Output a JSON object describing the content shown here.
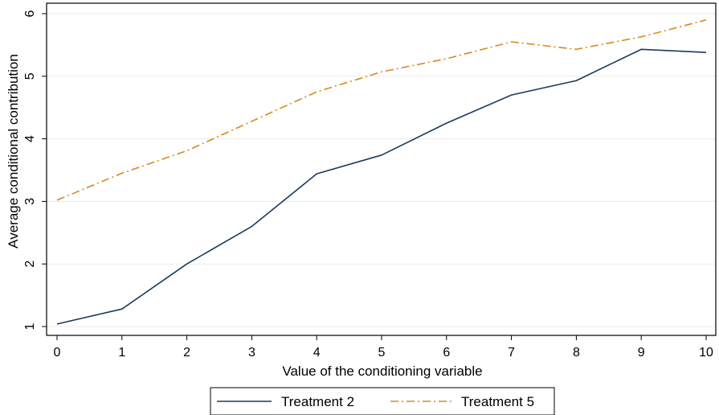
{
  "chart_data": {
    "type": "line",
    "title": "",
    "xlabel": "Value of the conditioning variable",
    "ylabel": "Average conditional contribution",
    "x": [
      0,
      1,
      2,
      3,
      4,
      5,
      6,
      7,
      8,
      9,
      10
    ],
    "xlim": [
      0,
      10
    ],
    "ylim": [
      1,
      6
    ],
    "xticks": [
      "0",
      "1",
      "2",
      "3",
      "4",
      "5",
      "6",
      "7",
      "8",
      "9",
      "10"
    ],
    "yticks": [
      "1",
      "2",
      "3",
      "4",
      "5",
      "6"
    ],
    "grid": true,
    "legend_position": "bottom",
    "series": [
      {
        "name": "Treatment 2",
        "color": "#1a3a5c",
        "dash": "solid",
        "values": [
          1.04,
          1.28,
          2.0,
          2.6,
          3.44,
          3.74,
          4.25,
          4.7,
          4.93,
          5.43,
          5.38
        ]
      },
      {
        "name": "Treatment 5",
        "color": "#d98a1c",
        "dash": "dashdot",
        "values": [
          3.02,
          3.45,
          3.81,
          4.28,
          4.75,
          5.07,
          5.28,
          5.55,
          5.43,
          5.63,
          5.9
        ]
      }
    ]
  }
}
